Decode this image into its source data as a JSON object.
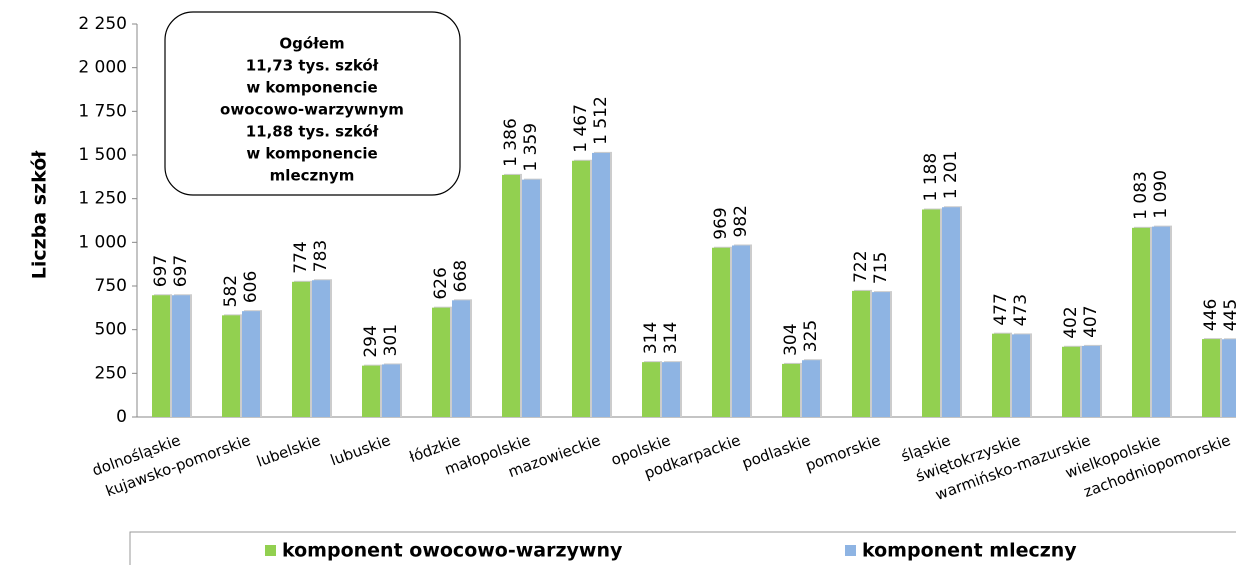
{
  "chart_data": {
    "type": "bar",
    "y_label": "Liczba szkół",
    "annotation": [
      "Ogółem",
      "11,73 tys. szkół",
      "w komponencie",
      "owocowo-warzywnym",
      "11,88 tys. szkół",
      "w komponencie",
      "mlecznym"
    ],
    "categories": [
      "dolnośląskie",
      "kujawsko-pomorskie",
      "lubelskie",
      "lubuskie",
      "łódzkie",
      "małopolskie",
      "mazowieckie",
      "opolskie",
      "podkarpackie",
      "podlaskie",
      "pomorskie",
      "śląskie",
      "świętokrzyskie",
      "warmińsko-mazurskie",
      "wielkopolskie",
      "zachodniopomorskie"
    ],
    "series": [
      {
        "name": "komponent owocowo-warzywny",
        "color": "#92d050",
        "values": [
          697,
          582,
          774,
          294,
          626,
          1386,
          1467,
          314,
          969,
          304,
          722,
          1188,
          477,
          402,
          1083,
          446
        ],
        "value_labels": [
          "697",
          "582",
          "774",
          "294",
          "626",
          "1 386",
          "1 467",
          "314",
          "969",
          "304",
          "722",
          "1 188",
          "477",
          "402",
          "1 083",
          "446"
        ]
      },
      {
        "name": "komponent mleczny",
        "color": "#8eb4e3",
        "values": [
          697,
          606,
          783,
          301,
          668,
          1359,
          1512,
          314,
          982,
          325,
          715,
          1201,
          473,
          407,
          1090,
          445
        ],
        "value_labels": [
          "697",
          "606",
          "783",
          "301",
          "668",
          "1 359",
          "1 512",
          "314",
          "982",
          "325",
          "715",
          "1 201",
          "473",
          "407",
          "1 090",
          "445"
        ]
      }
    ],
    "ylim": [
      0,
      2250
    ],
    "yticks": [
      0,
      250,
      500,
      750,
      {
        "value": 1000,
        "label": "1 000"
      },
      {
        "value": 1250,
        "label": "1 250"
      },
      {
        "value": 1500,
        "label": "1 500"
      },
      {
        "value": 1750,
        "label": "1 750"
      },
      {
        "value": 2000,
        "label": "2 000"
      },
      {
        "value": 2250,
        "label": "2 250"
      }
    ],
    "grid": false,
    "legend": "bottom"
  }
}
